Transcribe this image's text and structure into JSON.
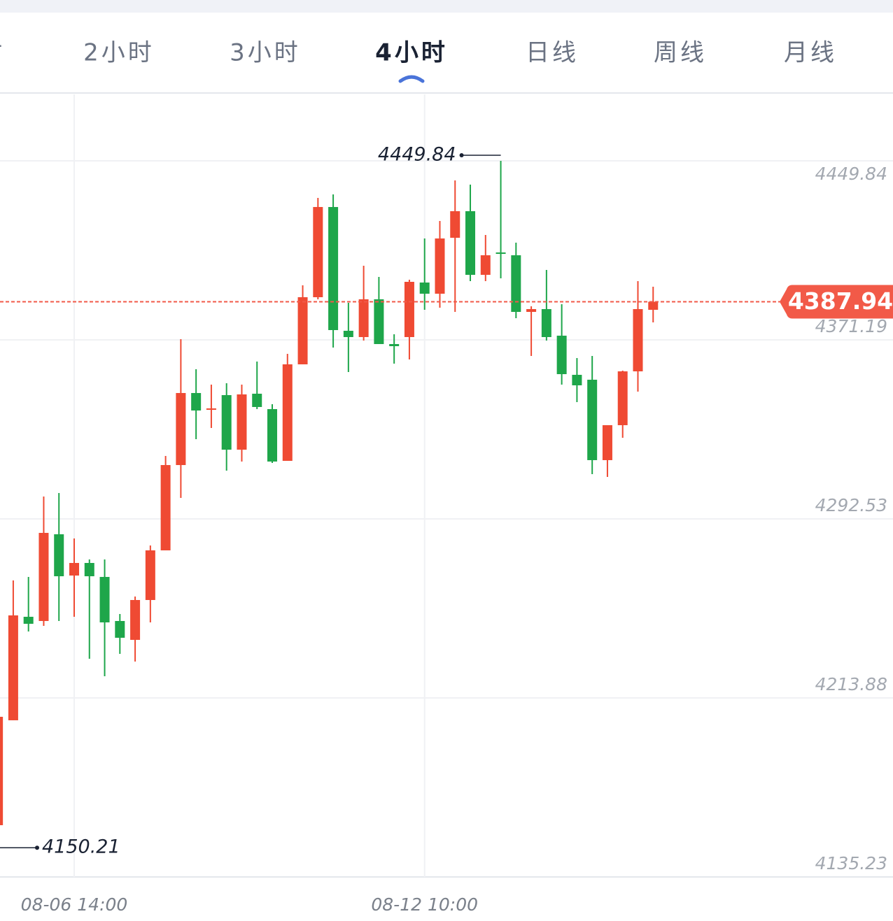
{
  "tabs": [
    "时",
    "2小时",
    "3小时",
    "4小时",
    "日线",
    "周线",
    "月线"
  ],
  "active_tab": 3,
  "chart_data": {
    "type": "candlestick",
    "categories": [
      null,
      null,
      null,
      null,
      null,
      "08-06 14:00",
      null,
      null,
      null,
      null,
      null,
      null,
      null,
      null,
      null,
      null,
      null,
      null,
      null,
      null,
      null,
      null,
      null,
      null,
      null,
      null,
      null,
      null,
      "08-12 10:00",
      null,
      null,
      null,
      null,
      null,
      null,
      null,
      null,
      null,
      null,
      null,
      null,
      null,
      null,
      null
    ],
    "open": [
      4157.97,
      4204.06,
      4249.53,
      4247.68,
      4285.78,
      4267.65,
      4273.18,
      4267.04,
      4247.68,
      4239.39,
      4256.9,
      4278.71,
      4316.19,
      4347.84,
      4340.47,
      4346.92,
      4322.95,
      4347.53,
      4340.77,
      4318.04,
      4360.44,
      4389.93,
      4429.56,
      4375.18,
      4372.42,
      4389.01,
      4369.35,
      4372.42,
      4396.38,
      4391.47,
      4416.04,
      4427.72,
      4399.76,
      4409.59,
      4408.36,
      4383.48,
      4384.71,
      4373.03,
      4355.83,
      4353.68,
      4318.35,
      4333.71,
      4357.36,
      4384.4
    ],
    "high": [
      4205.59,
      4265.5,
      4267.04,
      4302.37,
      4303.91,
      4283.94,
      4274.72,
      4274.72,
      4250.75,
      4258.44,
      4280.86,
      4320.19,
      4371.5,
      4358.29,
      4351.53,
      4352.14,
      4351.53,
      4361.66,
      4342.92,
      4365.04,
      4395.15,
      4433.56,
      4435.09,
      4387.47,
      4403.76,
      4398.84,
      4373.65,
      4397.61,
      4415.74,
      4423.42,
      4441.24,
      4439.39,
      4417.27,
      4449.84,
      4413.89,
      4385.94,
      4401.91,
      4386.86,
      4363.2,
      4364.12,
      4333.71,
      4357.67,
      4397.0,
      4394.54
    ],
    "low": [
      4150.21,
      4204.06,
      4243.07,
      4245.53,
      4247.68,
      4249.53,
      4231.09,
      4223.41,
      4233.24,
      4229.86,
      4247.07,
      4278.71,
      4301.76,
      4327.56,
      4332.48,
      4313.74,
      4317.73,
      4340.77,
      4317.12,
      4318.04,
      4360.44,
      4389.01,
      4367.81,
      4357.06,
      4370.88,
      4369.35,
      4360.74,
      4362.59,
      4384.4,
      4385.32,
      4383.48,
      4397.0,
      4397.0,
      4398.23,
      4380.71,
      4364.12,
      4370.88,
      4351.53,
      4343.84,
      4312.2,
      4310.97,
      4328.18,
      4348.45,
      4378.87
    ],
    "close": [
      4205.59,
      4250.14,
      4246.45,
      4286.39,
      4267.34,
      4273.18,
      4267.34,
      4247.07,
      4240.31,
      4256.9,
      4278.71,
      4316.19,
      4347.84,
      4340.16,
      4341.08,
      4322.95,
      4347.23,
      4341.7,
      4317.73,
      4360.44,
      4389.93,
      4429.56,
      4375.49,
      4372.42,
      4389.01,
      4369.35,
      4368.42,
      4396.69,
      4391.47,
      4415.74,
      4427.72,
      4399.76,
      4408.36,
      4408.98,
      4383.48,
      4384.71,
      4372.42,
      4356.13,
      4351.22,
      4318.35,
      4333.71,
      4357.36,
      4384.71,
      4387.94
    ],
    "up_color": "#ef4a33",
    "down_color": "#1ea64a",
    "ylim": [
      4135.23,
      4479.03
    ],
    "yticks": [
      4449.84,
      4371.19,
      4292.53,
      4213.88,
      4135.23
    ],
    "grid": true,
    "high_marker_index": 33,
    "low_marker_index": 0,
    "last_price_color": "#f25a48"
  }
}
